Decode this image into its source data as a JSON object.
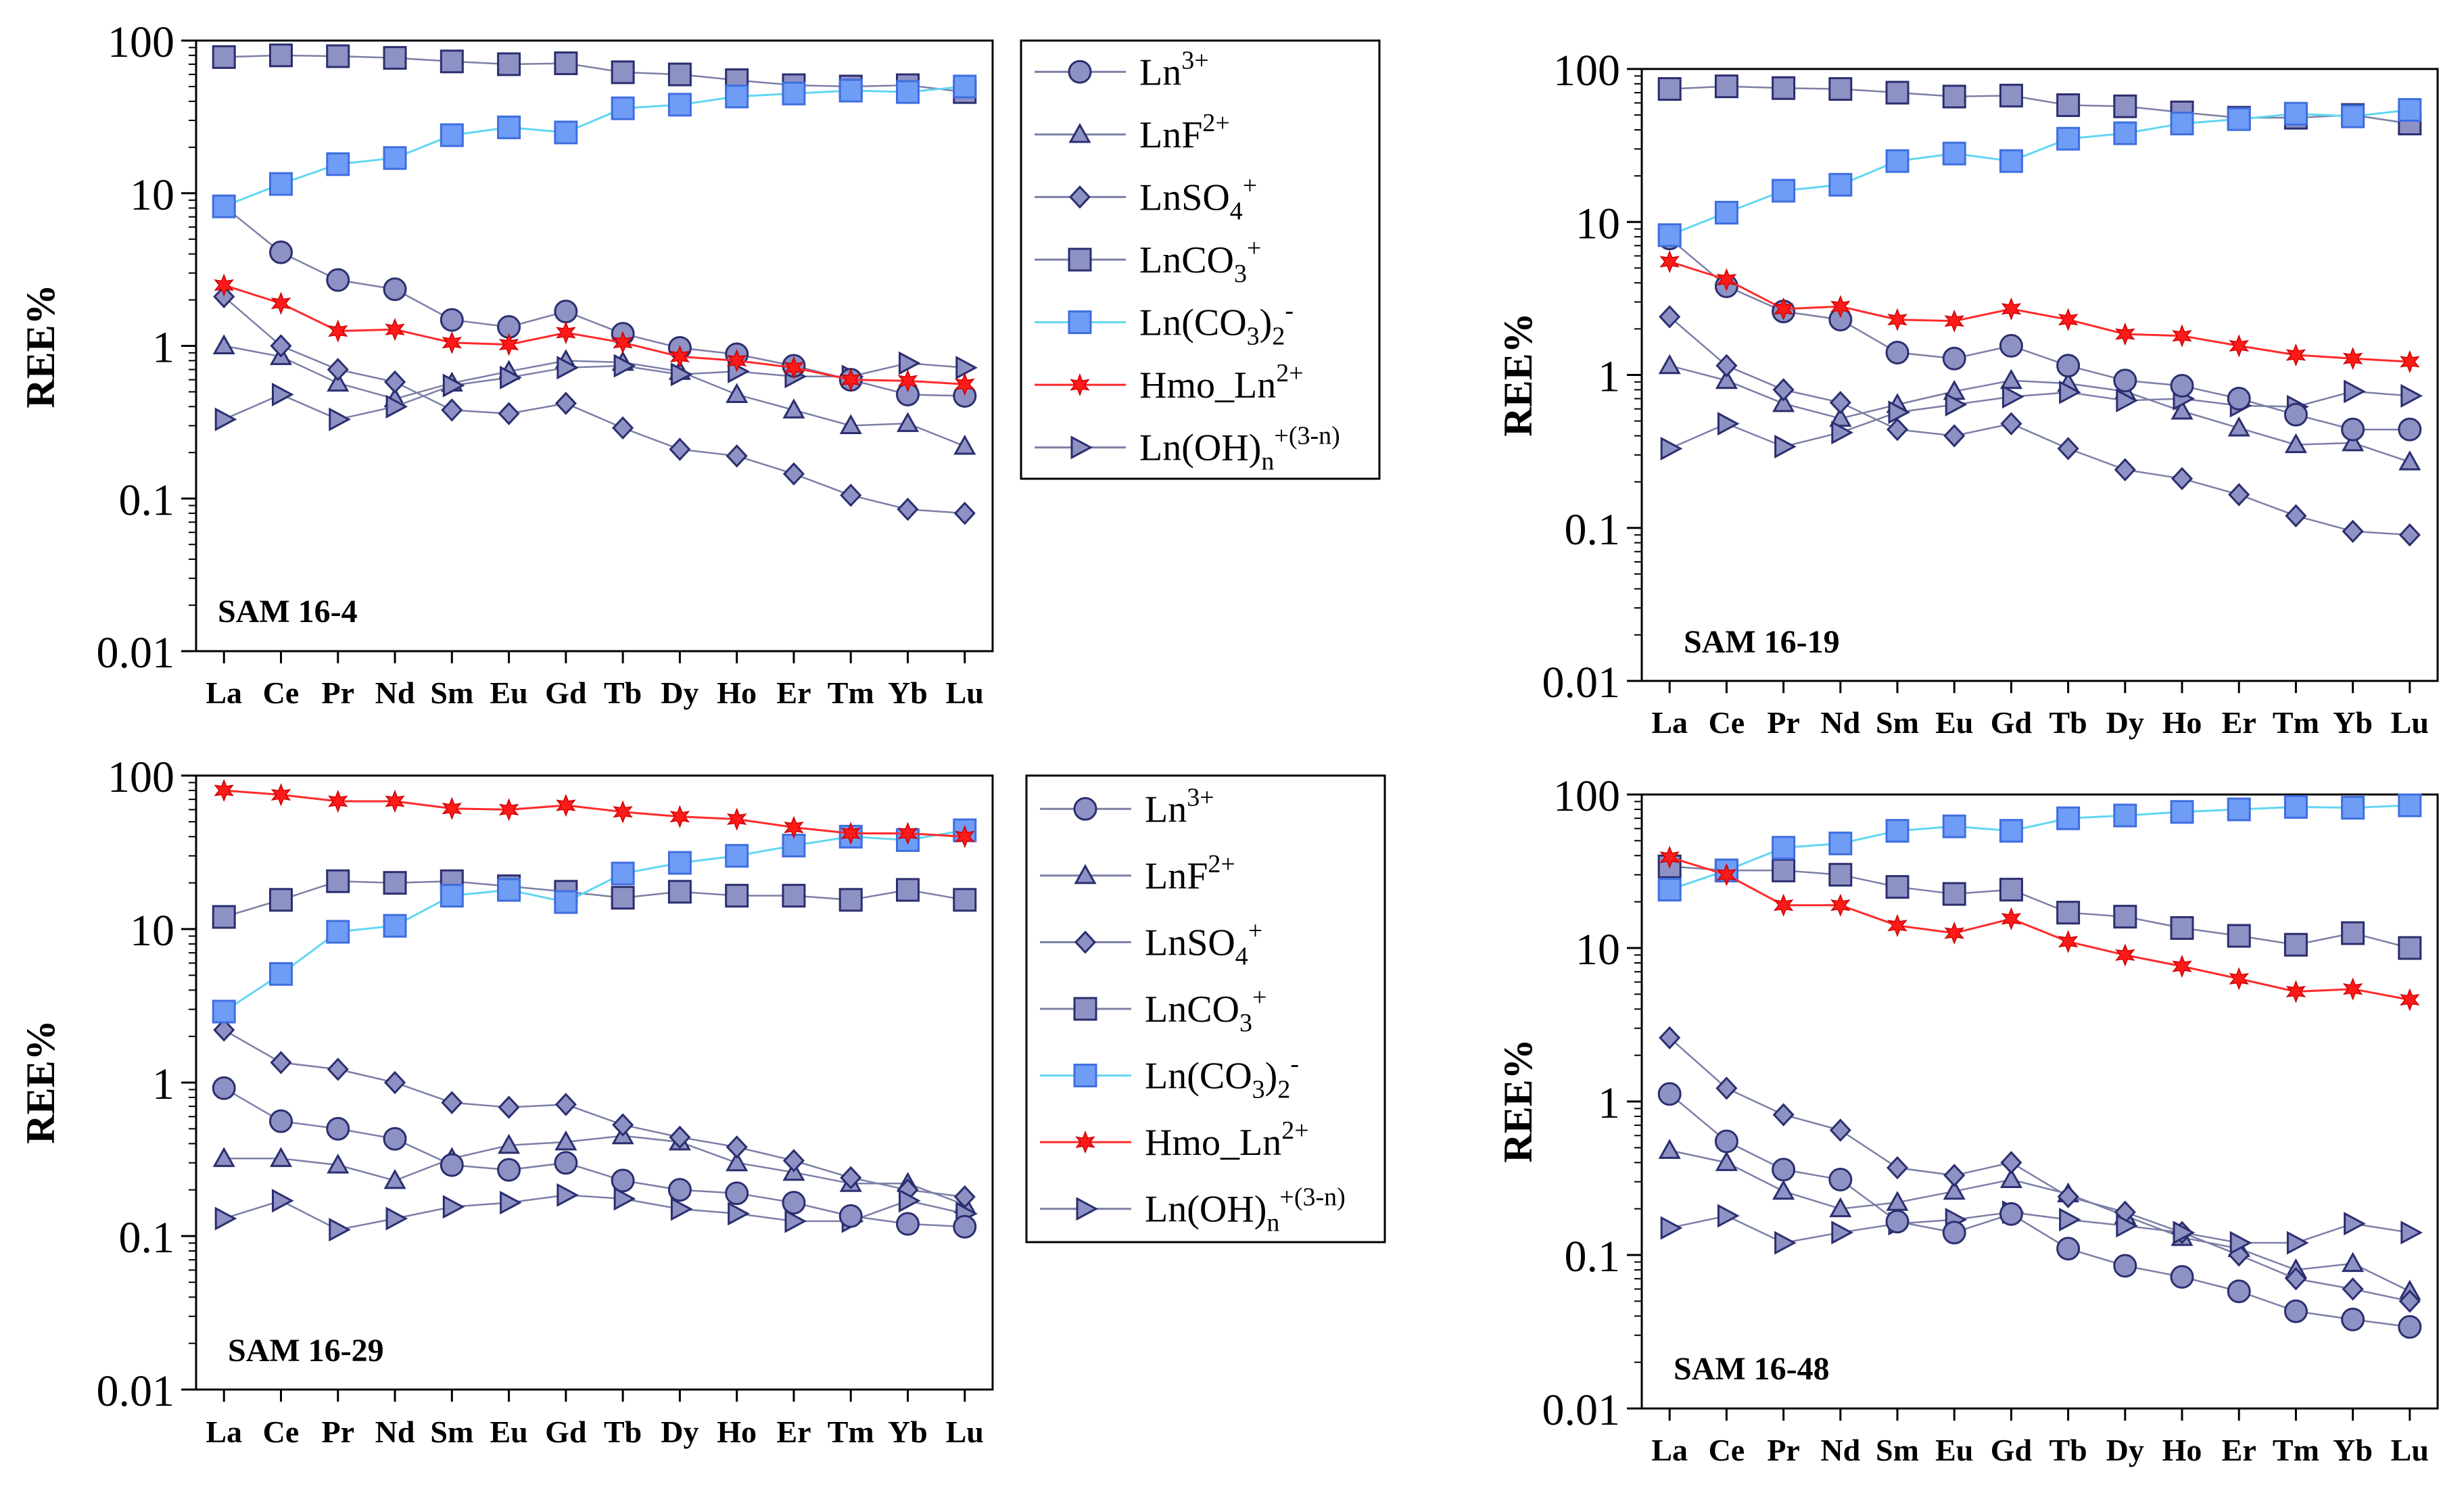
{
  "figure": {
    "ylabel": "REE%",
    "categories": [
      "La",
      "Ce",
      "Pr",
      "Nd",
      "Sm",
      "Eu",
      "Gd",
      "Tb",
      "Dy",
      "Ho",
      "Er",
      "Tm",
      "Yb",
      "Lu"
    ],
    "yticks": [
      "0.01",
      "0.1",
      "1",
      "10",
      "100"
    ]
  },
  "legend": [
    {
      "id": "ln3",
      "base": "Ln",
      "sup": "3+",
      "sub": ""
    },
    {
      "id": "lnf",
      "base": "LnF",
      "sup": "2+",
      "sub": ""
    },
    {
      "id": "lnso4",
      "base": "LnSO",
      "sub": "4",
      "sup": "+"
    },
    {
      "id": "lnco3",
      "base": "LnCO",
      "sub": "3",
      "sup": "+"
    },
    {
      "id": "lnco32",
      "base": "Ln(CO",
      "sub": "3",
      "post": ")",
      "sub2": "2",
      "sup": "-"
    },
    {
      "id": "hmo",
      "base": "Hmo_Ln",
      "sup": "2+",
      "sub": ""
    },
    {
      "id": "lnoh",
      "base": "Ln(OH)",
      "sub": "n",
      "sup": "+(3-n)"
    }
  ],
  "styles": {
    "ln3": {
      "line": "#7b7fa6",
      "fill": "#8d91c4",
      "edge": "#2b2e6e",
      "marker": "circle"
    },
    "lnf": {
      "line": "#7b7fa6",
      "fill": "#8d91c4",
      "edge": "#2b2e6e",
      "marker": "triangle"
    },
    "lnso4": {
      "line": "#7b7fa6",
      "fill": "#8d91c4",
      "edge": "#2b2e6e",
      "marker": "diamond"
    },
    "lnco3": {
      "line": "#7b7fa6",
      "fill": "#8d91c4",
      "edge": "#2b2e6e",
      "marker": "square"
    },
    "lnco32": {
      "line": "#62d6f2",
      "fill": "#6f9cf5",
      "edge": "#3f6ee0",
      "marker": "square"
    },
    "hmo": {
      "line": "#ff2a2a",
      "fill": "#ff1a1a",
      "edge": "#cc0000",
      "marker": "star"
    },
    "lnoh": {
      "line": "#7b7fa6",
      "fill": "#8d91c4",
      "edge": "#2b2e6e",
      "marker": "rtriangle"
    }
  },
  "chart_data": [
    {
      "type": "line",
      "title": "SAM 16-4",
      "xlabel": "",
      "ylabel": "REE%",
      "yscale": "log",
      "ylim": [
        0.01,
        100
      ],
      "categories": [
        "La",
        "Ce",
        "Pr",
        "Nd",
        "Sm",
        "Eu",
        "Gd",
        "Tb",
        "Dy",
        "Ho",
        "Er",
        "Tm",
        "Yb",
        "Lu"
      ],
      "series": [
        {
          "id": "ln3",
          "name": "Ln3+",
          "values": [
            8.2,
            4.1,
            2.7,
            2.35,
            1.48,
            1.33,
            1.68,
            1.2,
            0.97,
            0.88,
            0.74,
            0.6,
            0.48,
            0.47
          ]
        },
        {
          "id": "lnf",
          "name": "LnF2+",
          "values": [
            1.0,
            0.85,
            0.57,
            0.45,
            0.57,
            0.68,
            0.8,
            0.78,
            0.68,
            0.48,
            0.38,
            0.3,
            0.31,
            0.22
          ]
        },
        {
          "id": "lnso4",
          "name": "LnSO4+",
          "values": [
            2.1,
            1.0,
            0.7,
            0.58,
            0.38,
            0.36,
            0.42,
            0.29,
            0.21,
            0.19,
            0.145,
            0.105,
            0.085,
            0.08
          ]
        },
        {
          "id": "lnco3",
          "name": "LnCO3+",
          "values": [
            78,
            80,
            79,
            77,
            73,
            70,
            71,
            62,
            60,
            55,
            51,
            50,
            51,
            46
          ]
        },
        {
          "id": "lnco32",
          "name": "Ln(CO3)2-",
          "values": [
            8.2,
            11.5,
            15.5,
            17,
            24,
            27,
            25,
            36,
            38,
            43,
            45,
            47,
            46,
            50
          ]
        },
        {
          "id": "hmo",
          "name": "Hmo_Ln2+",
          "values": [
            2.5,
            1.9,
            1.25,
            1.28,
            1.05,
            1.02,
            1.22,
            1.05,
            0.85,
            0.8,
            0.72,
            0.6,
            0.59,
            0.56
          ]
        },
        {
          "id": "lnoh",
          "name": "Ln(OH)n+(3-n)",
          "values": [
            0.33,
            0.48,
            0.33,
            0.4,
            0.55,
            0.62,
            0.72,
            0.74,
            0.65,
            0.68,
            0.63,
            0.63,
            0.77,
            0.72
          ]
        }
      ]
    },
    {
      "type": "line",
      "title": "SAM 16-19",
      "xlabel": "",
      "ylabel": "REE%",
      "yscale": "log",
      "ylim": [
        0.01,
        100
      ],
      "categories": [
        "La",
        "Ce",
        "Pr",
        "Nd",
        "Sm",
        "Eu",
        "Gd",
        "Tb",
        "Dy",
        "Ho",
        "Er",
        "Tm",
        "Yb",
        "Lu"
      ],
      "series": [
        {
          "id": "ln3",
          "name": "Ln3+",
          "values": [
            7.8,
            3.8,
            2.6,
            2.3,
            1.4,
            1.28,
            1.55,
            1.15,
            0.92,
            0.85,
            0.7,
            0.55,
            0.44,
            0.44
          ]
        },
        {
          "id": "lnf",
          "name": "LnF2+",
          "values": [
            1.15,
            0.92,
            0.65,
            0.52,
            0.64,
            0.78,
            0.92,
            0.88,
            0.78,
            0.58,
            0.45,
            0.35,
            0.36,
            0.27
          ]
        },
        {
          "id": "lnso4",
          "name": "LnSO4+",
          "values": [
            2.4,
            1.15,
            0.8,
            0.66,
            0.44,
            0.4,
            0.48,
            0.33,
            0.24,
            0.21,
            0.165,
            0.12,
            0.095,
            0.09
          ]
        },
        {
          "id": "lnco3",
          "name": "LnCO3+",
          "values": [
            74,
            77,
            75,
            74,
            70,
            66,
            67,
            58,
            57,
            52,
            48,
            48,
            50,
            44
          ]
        },
        {
          "id": "lnco32",
          "name": "Ln(CO3)2-",
          "values": [
            8.2,
            11.5,
            16,
            17.5,
            25,
            28,
            25,
            35,
            38,
            44,
            47,
            51,
            49,
            54
          ]
        },
        {
          "id": "hmo",
          "name": "Hmo_Ln2+",
          "values": [
            5.5,
            4.2,
            2.7,
            2.8,
            2.3,
            2.25,
            2.7,
            2.3,
            1.85,
            1.8,
            1.55,
            1.35,
            1.28,
            1.22
          ]
        },
        {
          "id": "lnoh",
          "name": "Ln(OH)n+(3-n)",
          "values": [
            0.33,
            0.48,
            0.34,
            0.42,
            0.57,
            0.64,
            0.72,
            0.77,
            0.68,
            0.7,
            0.63,
            0.62,
            0.78,
            0.73
          ]
        }
      ]
    },
    {
      "type": "line",
      "title": "SAM 16-29",
      "xlabel": "",
      "ylabel": "REE%",
      "yscale": "log",
      "ylim": [
        0.01,
        100
      ],
      "categories": [
        "La",
        "Ce",
        "Pr",
        "Nd",
        "Sm",
        "Eu",
        "Gd",
        "Tb",
        "Dy",
        "Ho",
        "Er",
        "Tm",
        "Yb",
        "Lu"
      ],
      "series": [
        {
          "id": "ln3",
          "name": "Ln3+",
          "values": [
            0.92,
            0.56,
            0.5,
            0.43,
            0.29,
            0.27,
            0.3,
            0.23,
            0.2,
            0.19,
            0.165,
            0.135,
            0.12,
            0.115
          ]
        },
        {
          "id": "lnf",
          "name": "LnF2+",
          "values": [
            0.32,
            0.32,
            0.29,
            0.23,
            0.32,
            0.39,
            0.41,
            0.45,
            0.41,
            0.3,
            0.26,
            0.22,
            0.22,
            0.16
          ]
        },
        {
          "id": "lnso4",
          "name": "LnSO4+",
          "values": [
            2.2,
            1.35,
            1.22,
            1.0,
            0.74,
            0.69,
            0.72,
            0.53,
            0.44,
            0.38,
            0.31,
            0.24,
            0.2,
            0.18
          ]
        },
        {
          "id": "lnco3",
          "name": "LnCO3+",
          "values": [
            12,
            15.5,
            20.5,
            20,
            20.5,
            19,
            17.5,
            16,
            17.5,
            16.5,
            16.5,
            15.5,
            18,
            15.5
          ]
        },
        {
          "id": "lnco32",
          "name": "Ln(CO3)2-",
          "values": [
            2.9,
            5.1,
            9.6,
            10.5,
            16.5,
            18,
            15,
            23,
            27,
            30,
            35,
            40,
            38,
            44
          ]
        },
        {
          "id": "hmo",
          "name": "Hmo_Ln2+",
          "values": [
            80,
            75,
            68,
            68,
            61,
            60,
            64,
            58,
            54,
            52,
            46,
            42,
            42,
            40
          ]
        },
        {
          "id": "lnoh",
          "name": "Ln(OH)n+(3-n)",
          "values": [
            0.13,
            0.17,
            0.11,
            0.13,
            0.155,
            0.165,
            0.185,
            0.175,
            0.15,
            0.14,
            0.125,
            0.125,
            0.17,
            0.14
          ]
        }
      ]
    },
    {
      "type": "line",
      "title": "SAM 16-48",
      "xlabel": "",
      "ylabel": "REE%",
      "yscale": "log",
      "ylim": [
        0.01,
        100
      ],
      "categories": [
        "La",
        "Ce",
        "Pr",
        "Nd",
        "Sm",
        "Eu",
        "Gd",
        "Tb",
        "Dy",
        "Ho",
        "Er",
        "Tm",
        "Yb",
        "Lu"
      ],
      "series": [
        {
          "id": "ln3",
          "name": "Ln3+",
          "values": [
            1.12,
            0.55,
            0.36,
            0.31,
            0.165,
            0.14,
            0.185,
            0.11,
            0.085,
            0.072,
            0.058,
            0.043,
            0.038,
            0.034
          ]
        },
        {
          "id": "lnf",
          "name": "LnF2+",
          "values": [
            0.48,
            0.4,
            0.26,
            0.2,
            0.22,
            0.26,
            0.31,
            0.25,
            0.18,
            0.13,
            0.11,
            0.08,
            0.088,
            0.058
          ]
        },
        {
          "id": "lnso4",
          "name": "LnSO4+",
          "values": [
            2.6,
            1.22,
            0.82,
            0.65,
            0.37,
            0.33,
            0.4,
            0.24,
            0.19,
            0.14,
            0.1,
            0.07,
            0.06,
            0.05
          ]
        },
        {
          "id": "lnco3",
          "name": "LnCO3+",
          "values": [
            34,
            32,
            32,
            30,
            25,
            22.5,
            24,
            17,
            16,
            13.5,
            12,
            10.5,
            12.5,
            10
          ]
        },
        {
          "id": "lnco32",
          "name": "Ln(CO3)2-",
          "values": [
            24,
            32,
            45,
            48,
            58,
            62,
            58,
            70,
            73,
            77,
            80,
            83,
            82,
            85
          ]
        },
        {
          "id": "hmo",
          "name": "Hmo_Ln2+",
          "values": [
            39,
            30,
            19,
            19,
            14,
            12.5,
            15.5,
            11,
            9,
            7.6,
            6.3,
            5.2,
            5.4,
            4.6
          ]
        },
        {
          "id": "lnoh",
          "name": "Ln(OH)n+(3-n)",
          "values": [
            0.15,
            0.18,
            0.12,
            0.14,
            0.16,
            0.17,
            0.19,
            0.17,
            0.155,
            0.14,
            0.12,
            0.12,
            0.16,
            0.14
          ]
        }
      ]
    }
  ]
}
